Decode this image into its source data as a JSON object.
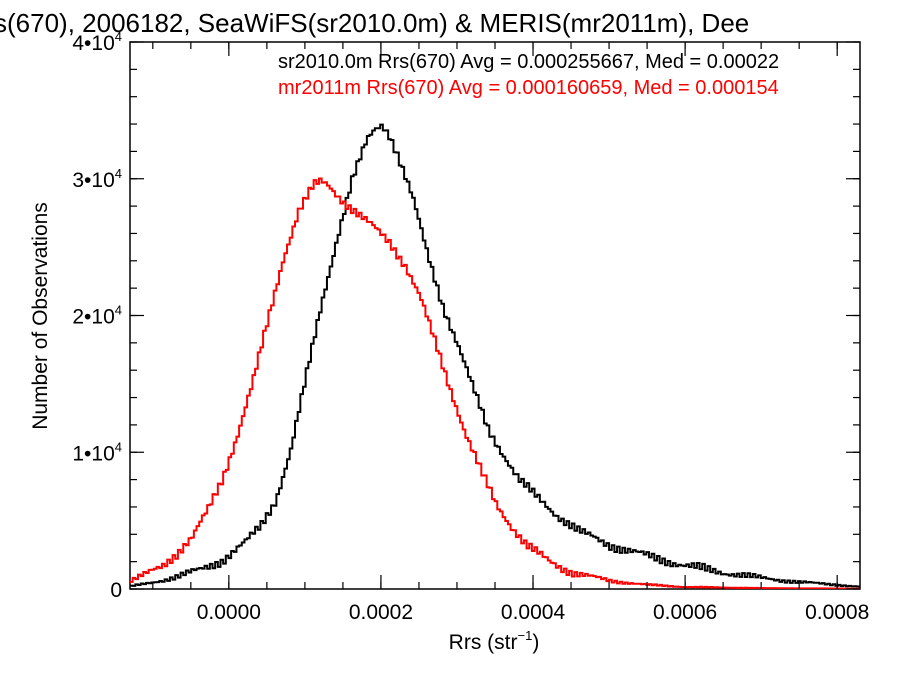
{
  "chart_data": {
    "type": "line",
    "title": "s(670), 2006182, SeaWiFS(sr2010.0m) & MERIS(mr2011m), Dee",
    "xlabel": "Rrs (str",
    "xlabel_sup": "−1",
    "xlabel_end": ")",
    "ylabel": "Number of Observations",
    "xlim": [
      -0.00013,
      0.00083
    ],
    "ylim": [
      0,
      40000
    ],
    "x_ticks": [
      0.0,
      0.0002,
      0.0004,
      0.0006,
      0.0008
    ],
    "x_tick_labels": [
      "0.0000",
      "0.0002",
      "0.0004",
      "0.0006",
      "0.0008"
    ],
    "y_ticks": [
      0,
      10000,
      20000,
      30000,
      40000
    ],
    "y_tick_labels": [
      {
        "base": "0",
        "sup": ""
      },
      {
        "base": "1•10",
        "sup": "4"
      },
      {
        "base": "2•10",
        "sup": "4"
      },
      {
        "base": "3•10",
        "sup": "4"
      },
      {
        "base": "4•10",
        "sup": "4"
      }
    ],
    "grid": false,
    "legend_placement": "top",
    "series": [
      {
        "name": "sr2010.0m Rrs(670) Avg = 0.000255667, Med = 0.00022",
        "color": "#000000",
        "points": [
          [
            -0.00013,
            200
          ],
          [
            -0.0001,
            500
          ],
          [
            -7e-05,
            900
          ],
          [
            -4e-05,
            1400
          ],
          [
            -1e-05,
            2100
          ],
          [
            2e-05,
            3400
          ],
          [
            4e-05,
            4600
          ],
          [
            6e-05,
            6500
          ],
          [
            8e-05,
            10200
          ],
          [
            0.0001,
            15500
          ],
          [
            0.00012,
            20800
          ],
          [
            0.00014,
            25500
          ],
          [
            0.00016,
            29800
          ],
          [
            0.00018,
            32800
          ],
          [
            0.00019,
            33600
          ],
          [
            0.0002,
            34000
          ],
          [
            0.00021,
            33200
          ],
          [
            0.00022,
            31800
          ],
          [
            0.00024,
            28600
          ],
          [
            0.00026,
            24400
          ],
          [
            0.00028,
            20700
          ],
          [
            0.0003,
            17800
          ],
          [
            0.00032,
            14600
          ],
          [
            0.00034,
            11600
          ],
          [
            0.00036,
            9800
          ],
          [
            0.00038,
            8000
          ],
          [
            0.0004,
            6900
          ],
          [
            0.00043,
            5400
          ],
          [
            0.00046,
            4200
          ],
          [
            0.0005,
            3200
          ],
          [
            0.00055,
            2400
          ],
          [
            0.0006,
            1700
          ],
          [
            0.00065,
            1200
          ],
          [
            0.0007,
            800
          ],
          [
            0.00075,
            500
          ],
          [
            0.0008,
            300
          ],
          [
            0.00083,
            150
          ]
        ]
      },
      {
        "name": "mr2011m Rrs(670) Avg = 0.000160659, Med = 0.000154",
        "color": "#ff0000",
        "points": [
          [
            -0.00013,
            600
          ],
          [
            -0.00011,
            1100
          ],
          [
            -9e-05,
            1700
          ],
          [
            -7e-05,
            2600
          ],
          [
            -5e-05,
            3700
          ],
          [
            -3e-05,
            5700
          ],
          [
            -1e-05,
            8100
          ],
          [
            1e-05,
            11300
          ],
          [
            3e-05,
            15100
          ],
          [
            5e-05,
            19700
          ],
          [
            7e-05,
            24200
          ],
          [
            9e-05,
            27600
          ],
          [
            0.00011,
            29500
          ],
          [
            0.00012,
            29800
          ],
          [
            0.00013,
            29500
          ],
          [
            0.00015,
            28300
          ],
          [
            0.00017,
            27300
          ],
          [
            0.00019,
            26400
          ],
          [
            0.00021,
            25400
          ],
          [
            0.00023,
            23700
          ],
          [
            0.00025,
            21300
          ],
          [
            0.00027,
            18000
          ],
          [
            0.00029,
            14600
          ],
          [
            0.00031,
            11300
          ],
          [
            0.00033,
            8600
          ],
          [
            0.00035,
            6200
          ],
          [
            0.00037,
            4600
          ],
          [
            0.00039,
            3200
          ],
          [
            0.00042,
            2000
          ],
          [
            0.00045,
            1200
          ],
          [
            0.0005,
            600
          ],
          [
            0.00055,
            300
          ],
          [
            0.0006,
            150
          ],
          [
            0.0007,
            60
          ],
          [
            0.00083,
            20
          ]
        ]
      }
    ]
  }
}
